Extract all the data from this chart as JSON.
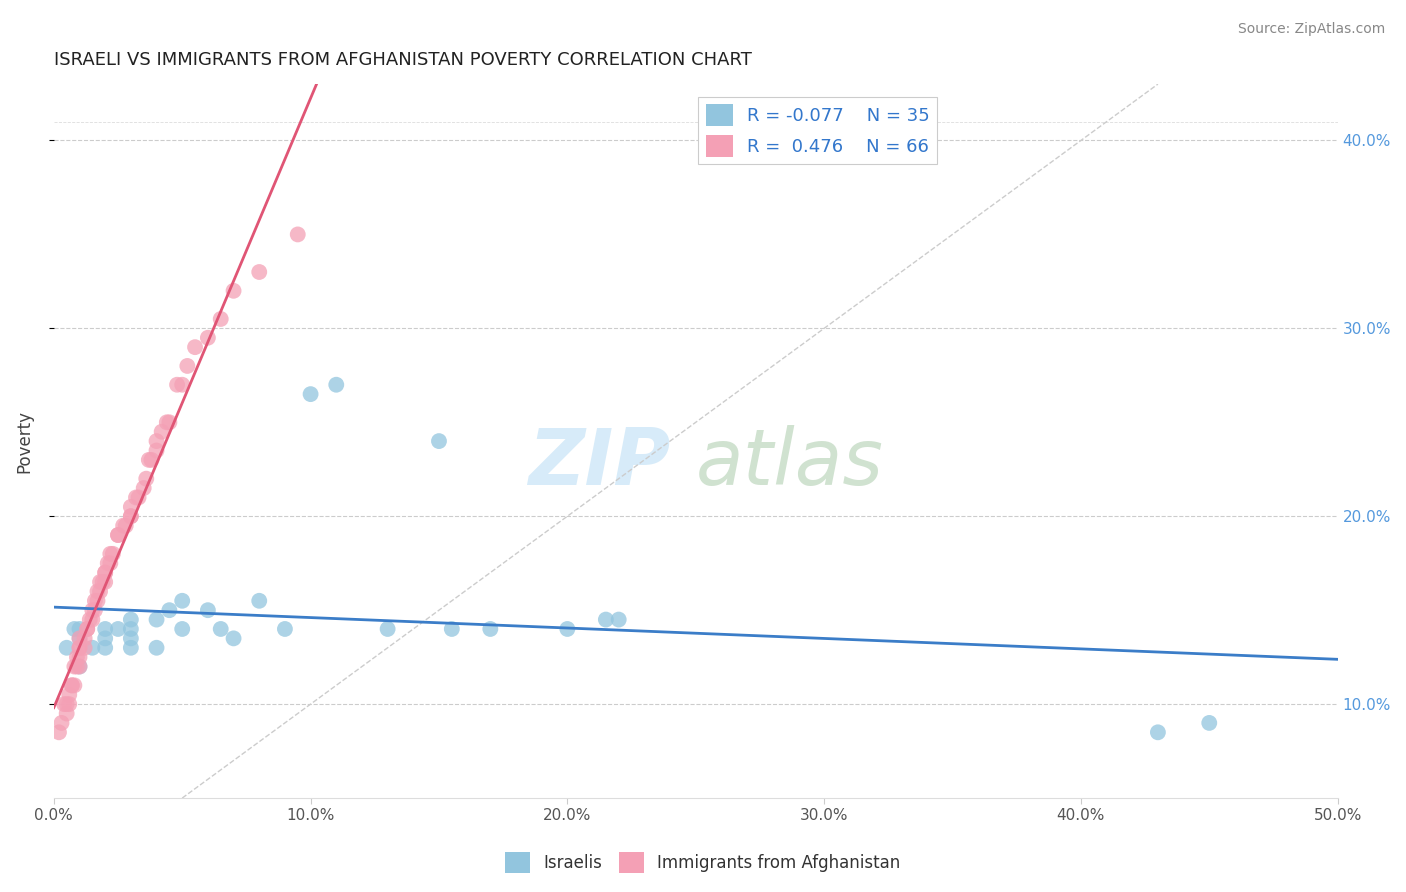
{
  "title": "ISRAELI VS IMMIGRANTS FROM AFGHANISTAN POVERTY CORRELATION CHART",
  "source": "Source: ZipAtlas.com",
  "ylabel": "Poverty",
  "xlim": [
    0.0,
    0.5
  ],
  "ylim": [
    0.05,
    0.43
  ],
  "color_blue": "#92c5de",
  "color_pink": "#f4a0b5",
  "color_blue_line": "#3b7dc8",
  "color_pink_line": "#e05575",
  "color_dashed": "#cccccc",
  "legend_R1": "R = -0.077",
  "legend_N1": "N = 35",
  "legend_R2": "R =  0.476",
  "legend_N2": "N = 66",
  "israelis_x": [
    0.005,
    0.008,
    0.01,
    0.01,
    0.01,
    0.015,
    0.02,
    0.02,
    0.02,
    0.025,
    0.03,
    0.03,
    0.03,
    0.03,
    0.04,
    0.04,
    0.045,
    0.05,
    0.05,
    0.06,
    0.065,
    0.07,
    0.08,
    0.09,
    0.1,
    0.11,
    0.13,
    0.15,
    0.155,
    0.17,
    0.2,
    0.215,
    0.22,
    0.43,
    0.45
  ],
  "israelis_y": [
    0.13,
    0.14,
    0.12,
    0.135,
    0.14,
    0.13,
    0.13,
    0.135,
    0.14,
    0.14,
    0.13,
    0.135,
    0.14,
    0.145,
    0.13,
    0.145,
    0.15,
    0.14,
    0.155,
    0.15,
    0.14,
    0.135,
    0.155,
    0.14,
    0.265,
    0.27,
    0.14,
    0.24,
    0.14,
    0.14,
    0.14,
    0.145,
    0.145,
    0.085,
    0.09
  ],
  "afghan_x": [
    0.002,
    0.003,
    0.004,
    0.005,
    0.005,
    0.006,
    0.006,
    0.007,
    0.007,
    0.008,
    0.008,
    0.009,
    0.009,
    0.01,
    0.01,
    0.01,
    0.01,
    0.01,
    0.012,
    0.012,
    0.013,
    0.013,
    0.014,
    0.015,
    0.015,
    0.016,
    0.016,
    0.017,
    0.017,
    0.018,
    0.018,
    0.019,
    0.02,
    0.02,
    0.02,
    0.021,
    0.022,
    0.022,
    0.023,
    0.025,
    0.025,
    0.027,
    0.028,
    0.03,
    0.03,
    0.03,
    0.032,
    0.033,
    0.035,
    0.036,
    0.037,
    0.038,
    0.04,
    0.04,
    0.042,
    0.044,
    0.045,
    0.048,
    0.05,
    0.052,
    0.055,
    0.06,
    0.065,
    0.07,
    0.08,
    0.095
  ],
  "afghan_y": [
    0.085,
    0.09,
    0.1,
    0.095,
    0.1,
    0.1,
    0.105,
    0.11,
    0.11,
    0.11,
    0.12,
    0.12,
    0.125,
    0.12,
    0.125,
    0.13,
    0.13,
    0.135,
    0.13,
    0.135,
    0.14,
    0.14,
    0.145,
    0.145,
    0.15,
    0.15,
    0.155,
    0.155,
    0.16,
    0.16,
    0.165,
    0.165,
    0.165,
    0.17,
    0.17,
    0.175,
    0.175,
    0.18,
    0.18,
    0.19,
    0.19,
    0.195,
    0.195,
    0.2,
    0.2,
    0.205,
    0.21,
    0.21,
    0.215,
    0.22,
    0.23,
    0.23,
    0.235,
    0.24,
    0.245,
    0.25,
    0.25,
    0.27,
    0.27,
    0.28,
    0.29,
    0.295,
    0.305,
    0.32,
    0.33,
    0.35
  ]
}
